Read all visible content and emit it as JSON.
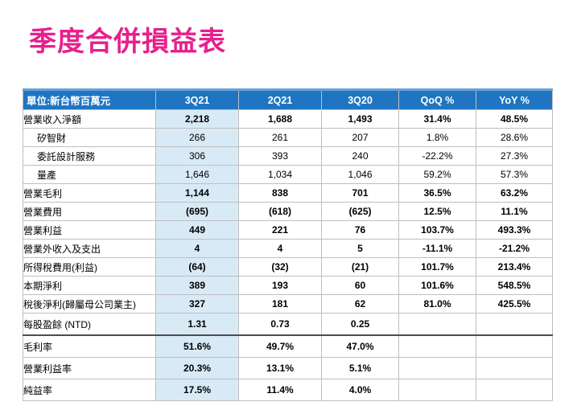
{
  "title": "季度合併損益表",
  "table": {
    "headers": [
      "單位:新台幣百萬元",
      "3Q21",
      "2Q21",
      "3Q20",
      "QoQ %",
      "YoY %"
    ],
    "rows": [
      {
        "label": "營業收入淨額",
        "values": [
          "2,218",
          "1,688",
          "1,493",
          "31.4%",
          "48.5%"
        ]
      },
      {
        "label": "矽智財",
        "values": [
          "266",
          "261",
          "207",
          "1.8%",
          "28.6%"
        ]
      },
      {
        "label": "委託設計服務",
        "values": [
          "306",
          "393",
          "240",
          "-22.2%",
          "27.3%"
        ]
      },
      {
        "label": "量產",
        "values": [
          "1,646",
          "1,034",
          "1,046",
          "59.2%",
          "57.3%"
        ]
      },
      {
        "label": "營業毛利",
        "values": [
          "1,144",
          "838",
          "701",
          "36.5%",
          "63.2%"
        ]
      },
      {
        "label": "營業費用",
        "values": [
          "(695)",
          "(618)",
          "(625)",
          "12.5%",
          "11.1%"
        ]
      },
      {
        "label": "營業利益",
        "values": [
          "449",
          "221",
          "76",
          "103.7%",
          "493.3%"
        ]
      },
      {
        "label": "營業外收入及支出",
        "values": [
          "4",
          "4",
          "5",
          "-11.1%",
          "-21.2%"
        ]
      },
      {
        "label": "所得稅費用(利益)",
        "values": [
          "(64)",
          "(32)",
          "(21)",
          "101.7%",
          "213.4%"
        ]
      },
      {
        "label": "本期淨利",
        "values": [
          "389",
          "193",
          "60",
          "101.6%",
          "548.5%"
        ]
      },
      {
        "label": "稅後淨利(歸屬母公司業主)",
        "values": [
          "327",
          "181",
          "62",
          "81.0%",
          "425.5%"
        ]
      },
      {
        "label": "每股盈餘 (NTD)",
        "values": [
          "1.31",
          "0.73",
          "0.25",
          "",
          ""
        ]
      },
      {
        "label": "毛利率",
        "values": [
          "51.6%",
          "49.7%",
          "47.0%",
          "",
          ""
        ]
      },
      {
        "label": "營業利益率",
        "values": [
          "20.3%",
          "13.1%",
          "5.1%",
          "",
          ""
        ]
      },
      {
        "label": "純益率",
        "values": [
          "17.5%",
          "11.4%",
          "4.0%",
          "",
          ""
        ]
      }
    ]
  },
  "colors": {
    "title": "#e7208c",
    "header_bg": "#1f75c2",
    "highlight_column": "#d9eaf7"
  }
}
